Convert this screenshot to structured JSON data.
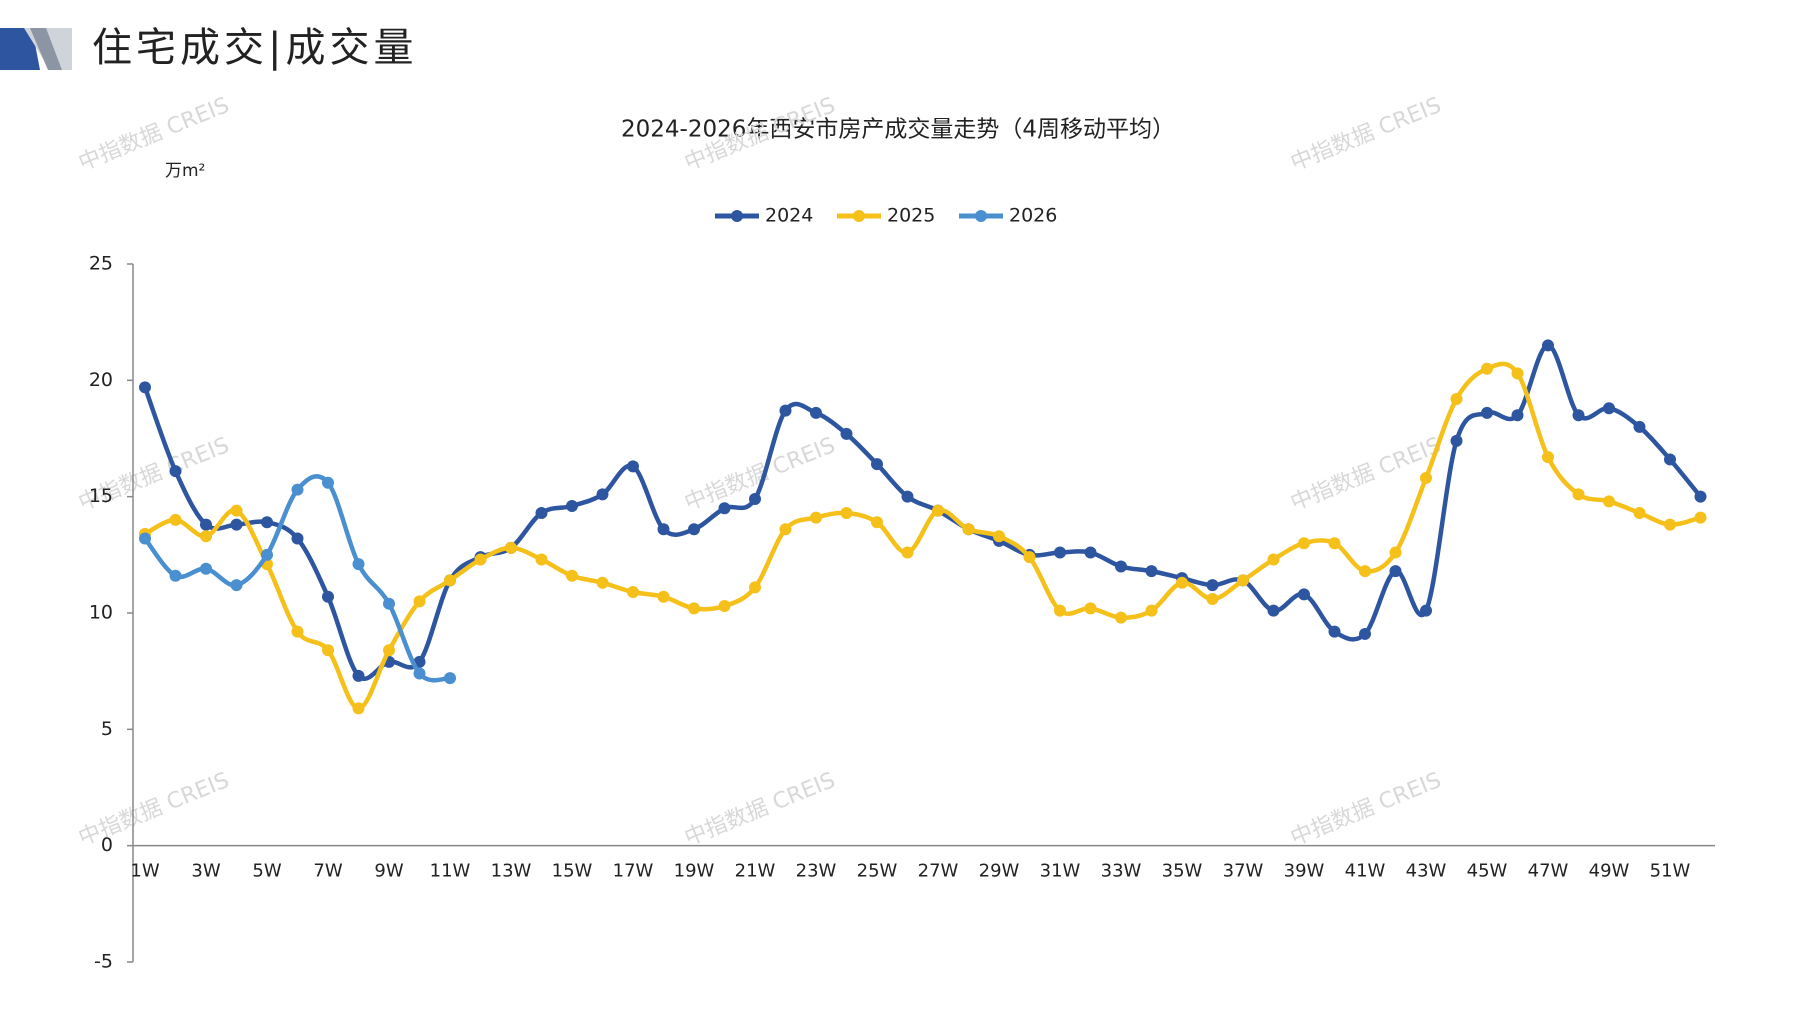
{
  "header": {
    "title": "住宅成交|成交量",
    "watermark": "中指数据 CREIS"
  },
  "chart_data": {
    "type": "line",
    "title": "2024-2026年西安市房产成交量走势（4周移动平均）",
    "y_label": "万m²",
    "categories": [
      "1W",
      null,
      "3W",
      null,
      "5W",
      null,
      "7W",
      null,
      "9W",
      null,
      "11W",
      null,
      "13W",
      null,
      "15W",
      null,
      "17W",
      null,
      "19W",
      null,
      "21W",
      null,
      "23W",
      null,
      "25W",
      null,
      "27W",
      null,
      "29W",
      null,
      "31W",
      null,
      "33W",
      null,
      "35W",
      null,
      "37W",
      null,
      "39W",
      null,
      "41W",
      null,
      "43W",
      null,
      "45W",
      null,
      "47W",
      null,
      "49W",
      null,
      "51W",
      null
    ],
    "series": [
      {
        "name": "2024",
        "color": "#2e55a0",
        "values": [
          19.7,
          16.1,
          13.8,
          13.8,
          13.9,
          13.2,
          10.7,
          7.3,
          7.9,
          7.9,
          11.4,
          12.4,
          12.8,
          14.3,
          14.6,
          15.1,
          16.3,
          13.6,
          13.6,
          14.5,
          14.9,
          18.7,
          18.6,
          17.7,
          16.4,
          15.0,
          14.4,
          13.6,
          13.1,
          12.5,
          12.6,
          12.6,
          12.0,
          11.8,
          11.5,
          11.2,
          11.4,
          10.1,
          10.8,
          9.2,
          9.1,
          11.8,
          10.1,
          17.4,
          18.6,
          18.5,
          21.5,
          18.5,
          18.8,
          18.0,
          16.6,
          15.0
        ]
      },
      {
        "name": "2025",
        "color": "#f5c01a",
        "values": [
          13.4,
          14.0,
          13.3,
          14.4,
          12.1,
          9.2,
          8.4,
          5.9,
          8.4,
          10.5,
          11.4,
          12.3,
          12.8,
          12.3,
          11.6,
          11.3,
          10.9,
          10.7,
          10.2,
          10.3,
          11.1,
          13.6,
          14.1,
          14.3,
          13.9,
          12.6,
          14.4,
          13.6,
          13.3,
          12.4,
          10.1,
          10.2,
          9.8,
          10.1,
          11.3,
          10.6,
          11.4,
          12.3,
          13.0,
          13.0,
          11.8,
          12.6,
          15.8,
          19.2,
          20.5,
          20.3,
          16.7,
          15.1,
          14.8,
          14.3,
          13.8,
          14.1
        ]
      },
      {
        "name": "2026",
        "color": "#4a8fd0",
        "values": [
          13.2,
          11.6,
          11.9,
          11.2,
          12.5,
          15.3,
          15.6,
          12.1,
          10.4,
          7.4,
          7.2,
          null,
          null,
          null,
          null,
          null,
          null,
          null,
          null,
          null,
          null,
          null,
          null,
          null,
          null,
          null,
          null,
          null,
          null,
          null,
          null,
          null,
          null,
          null,
          null,
          null,
          null,
          null,
          null,
          null,
          null,
          null,
          null,
          null,
          null,
          null,
          null,
          null,
          null,
          null,
          null,
          null
        ]
      }
    ],
    "ylim": [
      -5,
      25
    ],
    "yticks": [
      -5,
      0,
      5,
      10,
      15,
      20,
      25
    ],
    "grid": false,
    "legend": "top"
  }
}
